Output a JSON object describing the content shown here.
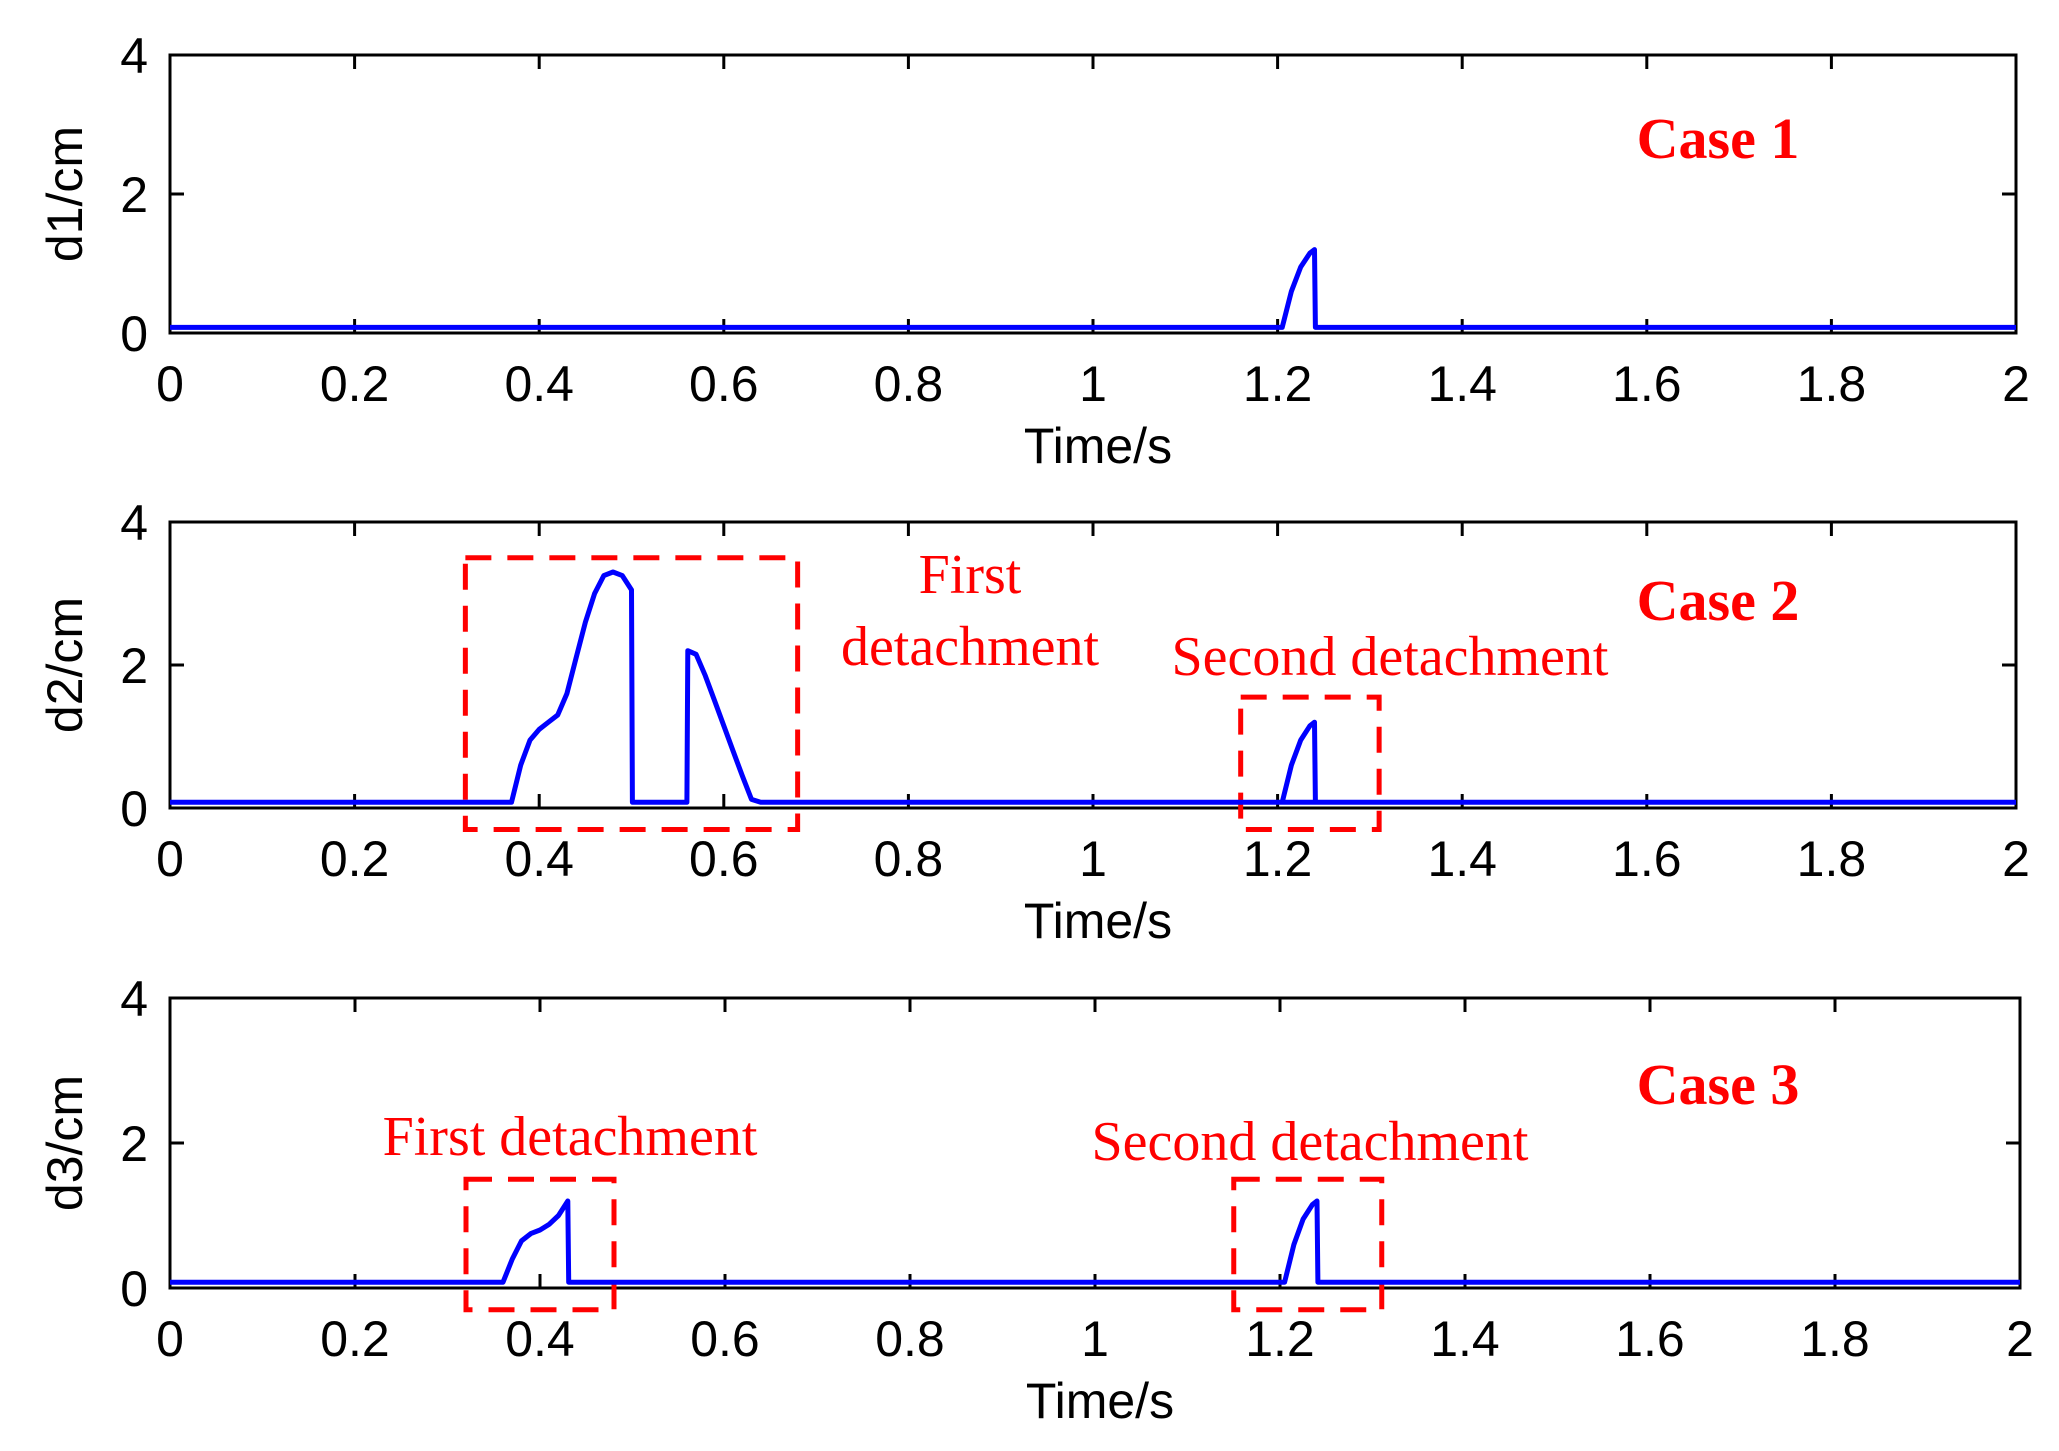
{
  "chart_data": [
    {
      "type": "line",
      "case_label": "Case 1",
      "ylabel": "d1/cm",
      "xlabel": "Time/s",
      "xlim": [
        0,
        2
      ],
      "ylim": [
        0,
        4
      ],
      "xticks": [
        0,
        0.2,
        0.4,
        0.6,
        0.8,
        1,
        1.2,
        1.4,
        1.6,
        1.8,
        2
      ],
      "xtick_labels": [
        "0",
        "0.2",
        "0.4",
        "0.6",
        "0.8",
        "1",
        "1.2",
        "1.4",
        "1.6",
        "1.8",
        "2"
      ],
      "yticks": [
        0,
        2,
        4
      ],
      "ytick_labels": [
        "0",
        "2",
        "4"
      ],
      "series": [
        {
          "name": "d1",
          "x": [
            0,
            1.205,
            1.215,
            1.225,
            1.235,
            1.24,
            1.241,
            2
          ],
          "y": [
            0.08,
            0.08,
            0.6,
            0.95,
            1.15,
            1.2,
            0.08,
            0.08
          ]
        }
      ],
      "highlights": [],
      "annotations": []
    },
    {
      "type": "line",
      "case_label": "Case 2",
      "ylabel": "d2/cm",
      "xlabel": "Time/s",
      "xlim": [
        0,
        2
      ],
      "ylim": [
        0,
        4
      ],
      "xticks": [
        0,
        0.2,
        0.4,
        0.6,
        0.8,
        1,
        1.2,
        1.4,
        1.6,
        1.8,
        2
      ],
      "xtick_labels": [
        "0",
        "0.2",
        "0.4",
        "0.6",
        "0.8",
        "1",
        "1.2",
        "1.4",
        "1.6",
        "1.8",
        "2"
      ],
      "yticks": [
        0,
        2,
        4
      ],
      "ytick_labels": [
        "0",
        "2",
        "4"
      ],
      "series": [
        {
          "name": "d2",
          "x": [
            0,
            0.37,
            0.38,
            0.39,
            0.4,
            0.41,
            0.42,
            0.43,
            0.44,
            0.45,
            0.46,
            0.47,
            0.48,
            0.49,
            0.5,
            0.501,
            0.56,
            0.561,
            0.57,
            0.58,
            0.59,
            0.6,
            0.61,
            0.62,
            0.63,
            0.64,
            2
          ],
          "y": [
            0.08,
            0.08,
            0.6,
            0.95,
            1.1,
            1.2,
            1.3,
            1.6,
            2.1,
            2.6,
            3.0,
            3.25,
            3.3,
            3.25,
            3.05,
            0.08,
            0.08,
            2.2,
            2.15,
            1.85,
            1.5,
            1.15,
            0.8,
            0.45,
            0.12,
            0.08,
            0.08
          ]
        },
        {
          "name": "d2-second",
          "x": [
            1.205,
            1.215,
            1.225,
            1.235,
            1.24,
            1.241
          ],
          "y": [
            0.08,
            0.6,
            0.95,
            1.15,
            1.2,
            0.08
          ]
        }
      ],
      "highlights": [
        {
          "x0": 0.32,
          "x1": 0.68,
          "y0": -0.3,
          "y1": 3.5
        },
        {
          "x0": 1.16,
          "x1": 1.31,
          "y0": -0.3,
          "y1": 1.55
        }
      ],
      "annotations": [
        {
          "lines": [
            "First",
            "detachment"
          ]
        },
        {
          "lines": [
            "Second detachment"
          ]
        }
      ]
    },
    {
      "type": "line",
      "case_label": "Case 3",
      "ylabel": "d3/cm",
      "xlabel": "Time/s",
      "xlim": [
        0,
        2
      ],
      "ylim": [
        0,
        4
      ],
      "xticks": [
        0,
        0.2,
        0.4,
        0.6,
        0.8,
        1,
        1.2,
        1.4,
        1.6,
        1.8,
        2
      ],
      "xtick_labels": [
        "0",
        "0.2",
        "0.4",
        "0.6",
        "0.8",
        "1",
        "1.2",
        "1.4",
        "1.6",
        "1.8",
        "2"
      ],
      "yticks": [
        0,
        2,
        4
      ],
      "ytick_labels": [
        "0",
        "2",
        "4"
      ],
      "series": [
        {
          "name": "d3",
          "x": [
            0,
            0.36,
            0.37,
            0.38,
            0.39,
            0.4,
            0.41,
            0.42,
            0.43,
            0.431,
            1.205,
            1.215,
            1.225,
            1.235,
            1.24,
            1.241,
            2
          ],
          "y": [
            0.08,
            0.08,
            0.4,
            0.65,
            0.75,
            0.8,
            0.88,
            1.0,
            1.2,
            0.08,
            0.08,
            0.6,
            0.95,
            1.15,
            1.2,
            0.08,
            0.08
          ]
        }
      ],
      "highlights": [
        {
          "x0": 0.32,
          "x1": 0.48,
          "y0": -0.3,
          "y1": 1.5
        },
        {
          "x0": 1.15,
          "x1": 1.31,
          "y0": -0.3,
          "y1": 1.5
        }
      ],
      "annotations": [
        {
          "lines": [
            "First detachment"
          ]
        },
        {
          "lines": [
            "Second detachment"
          ]
        }
      ]
    }
  ],
  "colors": {
    "series": "#0000ff",
    "highlight": "#ff0000",
    "annotation": "#ff0000",
    "case_label": "#ff0000",
    "axis": "#000000"
  }
}
